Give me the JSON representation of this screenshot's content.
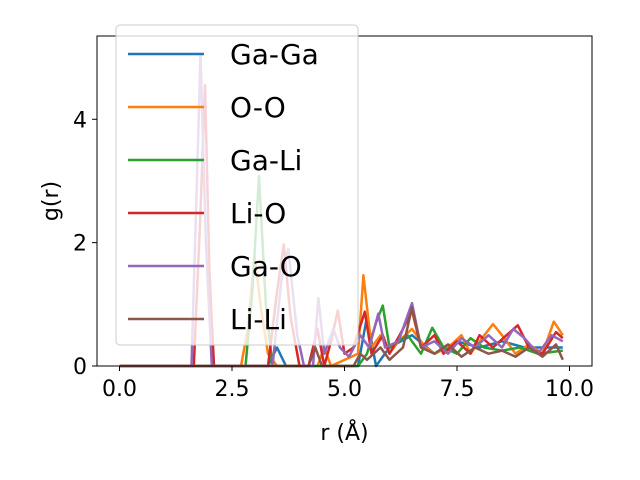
{
  "chart_data": {
    "type": "line",
    "title": "",
    "xlabel": "r (Å)",
    "ylabel": "g(r)",
    "xlim": [
      -0.5,
      10.5
    ],
    "ylim": [
      0,
      5.35
    ],
    "xticks": [
      "0.0",
      "2.5",
      "5.0",
      "7.5",
      "10.0"
    ],
    "xtick_values": [
      0,
      2.5,
      5,
      7.5,
      10
    ],
    "yticks": [
      "0",
      "2",
      "4"
    ],
    "ytick_values": [
      0,
      2,
      4
    ],
    "grid": false,
    "legend_position": "top-left",
    "series": [
      {
        "name": "Ga-Ga",
        "color": "#1f77b4",
        "points": [
          [
            0,
            0
          ],
          [
            3.3,
            0
          ],
          [
            3.5,
            0.3
          ],
          [
            3.7,
            0
          ],
          [
            5.3,
            0
          ],
          [
            5.5,
            0.8
          ],
          [
            5.7,
            0
          ],
          [
            6.0,
            0.3
          ],
          [
            6.5,
            0.5
          ],
          [
            7.0,
            0.2
          ],
          [
            7.5,
            0.4
          ],
          [
            8.0,
            0.3
          ],
          [
            8.5,
            0.4
          ],
          [
            9.0,
            0.3
          ],
          [
            9.5,
            0.3
          ],
          [
            9.85,
            0.3
          ]
        ]
      },
      {
        "name": "O-O",
        "color": "#ff7f0e",
        "points": [
          [
            0,
            0
          ],
          [
            2.7,
            0
          ],
          [
            2.85,
            0.6
          ],
          [
            3.0,
            1.8
          ],
          [
            3.15,
            0.9
          ],
          [
            3.3,
            0.2
          ],
          [
            3.5,
            0
          ],
          [
            4.4,
            0
          ],
          [
            4.55,
            0.3
          ],
          [
            4.7,
            0
          ],
          [
            5.3,
            0.2
          ],
          [
            5.42,
            1.47
          ],
          [
            5.6,
            0.3
          ],
          [
            5.8,
            0.5
          ],
          [
            6.0,
            0.2
          ],
          [
            6.2,
            0.4
          ],
          [
            6.5,
            0.6
          ],
          [
            6.8,
            0.3
          ],
          [
            7.0,
            0.2
          ],
          [
            7.3,
            0.3
          ],
          [
            7.6,
            0.5
          ],
          [
            7.8,
            0.2
          ],
          [
            8.0,
            0.4
          ],
          [
            8.3,
            0.68
          ],
          [
            8.5,
            0.5
          ],
          [
            8.8,
            0.2
          ],
          [
            9.1,
            0.35
          ],
          [
            9.4,
            0.2
          ],
          [
            9.65,
            0.72
          ],
          [
            9.85,
            0.5
          ]
        ]
      },
      {
        "name": "Ga-Li",
        "color": "#2ca02c",
        "points": [
          [
            0,
            0
          ],
          [
            2.8,
            0
          ],
          [
            2.95,
            1.2
          ],
          [
            3.1,
            3.08
          ],
          [
            3.25,
            1.0
          ],
          [
            3.4,
            0
          ],
          [
            5.3,
            0
          ],
          [
            5.5,
            0.2
          ],
          [
            5.7,
            0.7
          ],
          [
            5.85,
            0.98
          ],
          [
            6.0,
            0.3
          ],
          [
            6.4,
            0.5
          ],
          [
            6.7,
            0.2
          ],
          [
            6.95,
            0.62
          ],
          [
            7.2,
            0.3
          ],
          [
            7.5,
            0.2
          ],
          [
            7.8,
            0.45
          ],
          [
            8.1,
            0.3
          ],
          [
            8.5,
            0.25
          ],
          [
            8.9,
            0.3
          ],
          [
            9.3,
            0.2
          ],
          [
            9.85,
            0.25
          ]
        ]
      },
      {
        "name": "Li-O",
        "color": "#d62728",
        "points": [
          [
            0,
            0
          ],
          [
            1.65,
            0
          ],
          [
            1.8,
            2.5
          ],
          [
            1.9,
            4.55
          ],
          [
            2.0,
            1.5
          ],
          [
            2.1,
            0
          ],
          [
            3.3,
            0
          ],
          [
            3.5,
            1.2
          ],
          [
            3.65,
            1.97
          ],
          [
            3.8,
            0.8
          ],
          [
            4.0,
            0
          ],
          [
            4.2,
            0
          ],
          [
            4.4,
            0.6
          ],
          [
            4.55,
            0
          ],
          [
            4.7,
            0.4
          ],
          [
            4.85,
            0.9
          ],
          [
            5.0,
            0.2
          ],
          [
            5.2,
            0.3
          ],
          [
            5.45,
            0.88
          ],
          [
            5.6,
            0.2
          ],
          [
            5.85,
            0.5
          ],
          [
            6.0,
            0.2
          ],
          [
            6.3,
            0.6
          ],
          [
            6.5,
            0.9
          ],
          [
            6.7,
            0.3
          ],
          [
            7.0,
            0.5
          ],
          [
            7.2,
            0.2
          ],
          [
            7.5,
            0.4
          ],
          [
            7.8,
            0.2
          ],
          [
            8.0,
            0.5
          ],
          [
            8.3,
            0.3
          ],
          [
            8.6,
            0.5
          ],
          [
            8.85,
            0.66
          ],
          [
            9.1,
            0.3
          ],
          [
            9.4,
            0.2
          ],
          [
            9.7,
            0.55
          ],
          [
            9.85,
            0.45
          ]
        ]
      },
      {
        "name": "Ga-O",
        "color": "#9467bd",
        "points": [
          [
            0,
            0
          ],
          [
            1.6,
            0
          ],
          [
            1.72,
            3.0
          ],
          [
            1.8,
            5.05
          ],
          [
            1.92,
            2.0
          ],
          [
            2.05,
            0
          ],
          [
            3.4,
            0
          ],
          [
            3.6,
            1.4
          ],
          [
            3.75,
            1.9
          ],
          [
            3.95,
            0.5
          ],
          [
            4.1,
            0
          ],
          [
            4.3,
            0
          ],
          [
            4.42,
            1.1
          ],
          [
            4.55,
            0.2
          ],
          [
            4.75,
            0.6
          ],
          [
            4.9,
            0.3
          ],
          [
            5.1,
            0.15
          ],
          [
            5.35,
            0.5
          ],
          [
            5.55,
            0.3
          ],
          [
            5.75,
            0.85
          ],
          [
            5.9,
            0.3
          ],
          [
            6.2,
            0.4
          ],
          [
            6.5,
            1.02
          ],
          [
            6.7,
            0.3
          ],
          [
            7.0,
            0.4
          ],
          [
            7.3,
            0.2
          ],
          [
            7.6,
            0.45
          ],
          [
            7.9,
            0.3
          ],
          [
            8.2,
            0.5
          ],
          [
            8.5,
            0.3
          ],
          [
            8.75,
            0.6
          ],
          [
            9.0,
            0.45
          ],
          [
            9.3,
            0.2
          ],
          [
            9.6,
            0.5
          ],
          [
            9.85,
            0.4
          ]
        ]
      },
      {
        "name": "Li-Li",
        "color": "#8c564b",
        "points": [
          [
            0,
            0
          ],
          [
            4.2,
            0
          ],
          [
            4.35,
            0.3
          ],
          [
            4.5,
            0
          ],
          [
            5.2,
            0
          ],
          [
            5.35,
            0.2
          ],
          [
            5.5,
            0.1
          ],
          [
            5.8,
            0.3
          ],
          [
            6.0,
            0.1
          ],
          [
            6.3,
            0.3
          ],
          [
            6.5,
            0.95
          ],
          [
            6.7,
            0.3
          ],
          [
            7.0,
            0.2
          ],
          [
            7.3,
            0.35
          ],
          [
            7.6,
            0.15
          ],
          [
            7.9,
            0.3
          ],
          [
            8.2,
            0.2
          ],
          [
            8.5,
            0.25
          ],
          [
            8.8,
            0.15
          ],
          [
            9.1,
            0.3
          ],
          [
            9.4,
            0.15
          ],
          [
            9.7,
            0.35
          ],
          [
            9.85,
            0.1
          ]
        ]
      }
    ]
  }
}
